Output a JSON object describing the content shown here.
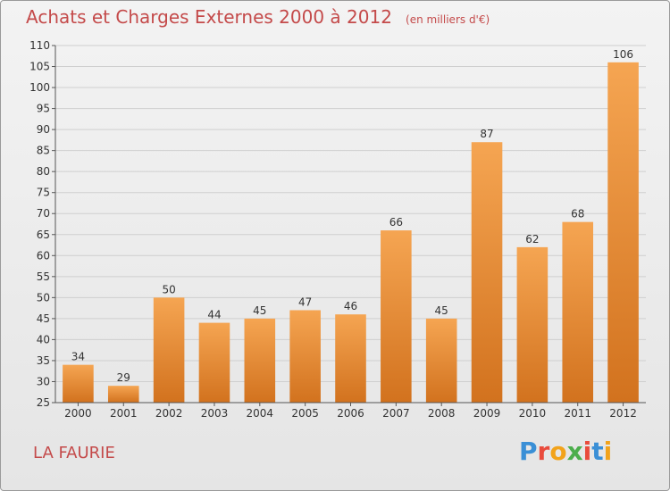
{
  "header": {
    "title": "Achats et Charges Externes 2000 à 2012",
    "subtitle": "(en milliers d'€)"
  },
  "footer": {
    "location": "LA FAURIE",
    "logo_text": "Proxiti"
  },
  "colors": {
    "title": "#c44a4a",
    "bar_top": "#f5a552",
    "bar_bottom": "#d2721e",
    "logo_letters": [
      "#3a8fd6",
      "#e94b3c",
      "#f2a31b",
      "#4cae4c",
      "#e94b3c",
      "#3a8fd6",
      "#f2a31b"
    ]
  },
  "chart_data": {
    "type": "bar",
    "title": "Achats et Charges Externes 2000 à 2012",
    "subtitle": "(en milliers d'€)",
    "categories": [
      "2000",
      "2001",
      "2002",
      "2003",
      "2004",
      "2005",
      "2006",
      "2007",
      "2008",
      "2009",
      "2010",
      "2011",
      "2012"
    ],
    "values": [
      34,
      29,
      50,
      44,
      45,
      47,
      46,
      66,
      45,
      87,
      62,
      68,
      106
    ],
    "ylim": [
      25,
      110
    ],
    "yticks": [
      25,
      30,
      35,
      40,
      45,
      50,
      55,
      60,
      65,
      70,
      75,
      80,
      85,
      90,
      95,
      100,
      105,
      110
    ],
    "grid": true,
    "data_labels": true
  }
}
